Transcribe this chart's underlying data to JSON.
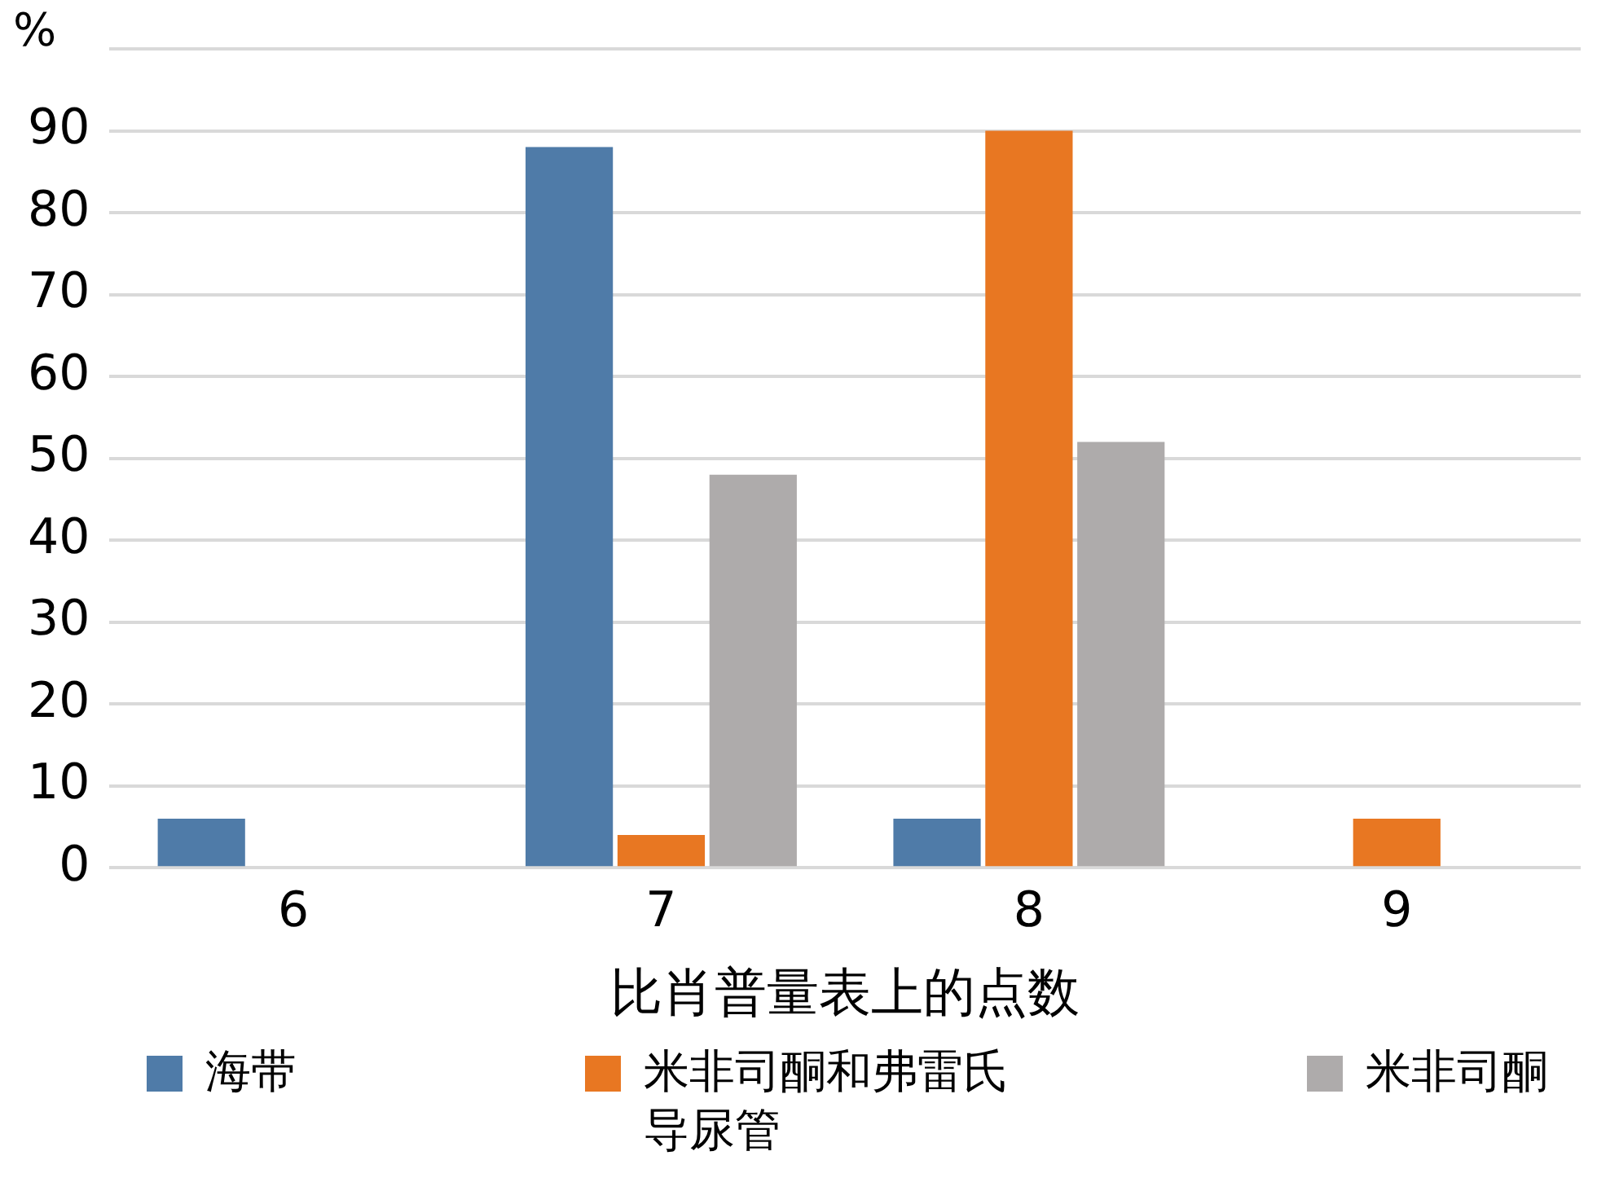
{
  "chart_data": {
    "type": "bar",
    "ylabel": "%",
    "xlabel": "比肖普量表上的点数",
    "categories": [
      "6",
      "7",
      "8",
      "9"
    ],
    "series": [
      {
        "name": "海带",
        "color": "#4f7ba8",
        "values": [
          6,
          88,
          6,
          0
        ]
      },
      {
        "name": "米非司酮和弗雷氏导尿管",
        "color": "#e87722",
        "values": [
          0,
          4,
          90,
          6
        ]
      },
      {
        "name": "米非司酮",
        "color": "#aeabab",
        "values": [
          0,
          48,
          52,
          0
        ]
      }
    ],
    "ylim": [
      0,
      100
    ],
    "yticks": [
      0,
      10,
      20,
      30,
      40,
      50,
      60,
      70,
      80,
      90,
      {
        "value": 100,
        "label": null
      }
    ],
    "grid": "y",
    "legend": "bottom"
  }
}
